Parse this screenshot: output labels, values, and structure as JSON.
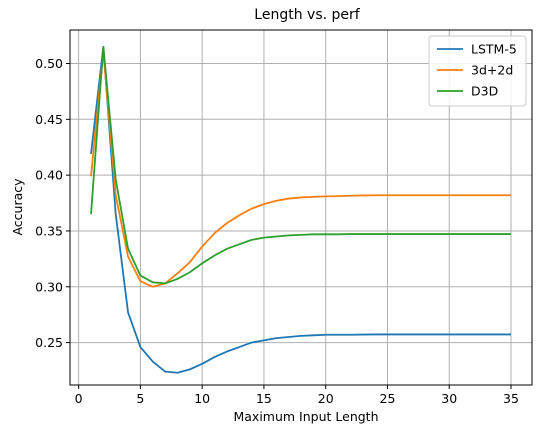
{
  "chart_data": {
    "type": "line",
    "title": "Length vs. perf",
    "xlabel": "Maximum Input Length",
    "ylabel": "Accuracy",
    "xlim": [
      -0.7,
      36.7
    ],
    "ylim": [
      0.212,
      0.53
    ],
    "xticks": [
      0,
      5,
      10,
      15,
      20,
      25,
      30,
      35
    ],
    "xtick_labels": [
      "0",
      "5",
      "10",
      "15",
      "20",
      "25",
      "30",
      "35"
    ],
    "yticks": [
      0.25,
      0.3,
      0.35,
      0.4,
      0.45,
      0.5
    ],
    "ytick_labels": [
      "0.25",
      "0.30",
      "0.35",
      "0.40",
      "0.45",
      "0.50"
    ],
    "grid": true,
    "legend_position": "top-right",
    "x": [
      1,
      2,
      3,
      4,
      5,
      6,
      7,
      8,
      9,
      10,
      11,
      12,
      13,
      14,
      15,
      16,
      17,
      18,
      19,
      20,
      21,
      22,
      23,
      24,
      25,
      26,
      27,
      28,
      29,
      30,
      31,
      32,
      33,
      34,
      35
    ],
    "series": [
      {
        "name": "LSTM-5",
        "color": "#1f77b4",
        "values": [
          0.419,
          0.515,
          0.365,
          0.277,
          0.246,
          0.233,
          0.224,
          0.223,
          0.226,
          0.231,
          0.237,
          0.242,
          0.246,
          0.25,
          0.252,
          0.254,
          0.255,
          0.256,
          0.2565,
          0.257,
          0.257,
          0.257,
          0.2572,
          0.2573,
          0.2573,
          0.2573,
          0.2573,
          0.2573,
          0.2573,
          0.2573,
          0.2573,
          0.2573,
          0.2573,
          0.2573,
          0.2573
        ]
      },
      {
        "name": "3d+2d",
        "color": "#ff7f0e",
        "values": [
          0.399,
          0.511,
          0.382,
          0.327,
          0.305,
          0.3,
          0.303,
          0.312,
          0.322,
          0.336,
          0.348,
          0.357,
          0.364,
          0.37,
          0.374,
          0.377,
          0.379,
          0.38,
          0.3805,
          0.381,
          0.3812,
          0.3815,
          0.3818,
          0.382,
          0.382,
          0.382,
          0.382,
          0.382,
          0.382,
          0.382,
          0.382,
          0.382,
          0.382,
          0.382,
          0.382
        ]
      },
      {
        "name": "D3D",
        "color": "#2ca02c",
        "values": [
          0.365,
          0.515,
          0.396,
          0.334,
          0.31,
          0.304,
          0.303,
          0.307,
          0.313,
          0.321,
          0.328,
          0.334,
          0.338,
          0.342,
          0.344,
          0.345,
          0.346,
          0.3465,
          0.347,
          0.347,
          0.347,
          0.3472,
          0.3472,
          0.3472,
          0.3472,
          0.3472,
          0.3472,
          0.3472,
          0.3472,
          0.3472,
          0.3472,
          0.3472,
          0.3472,
          0.3472,
          0.3472
        ]
      }
    ]
  }
}
